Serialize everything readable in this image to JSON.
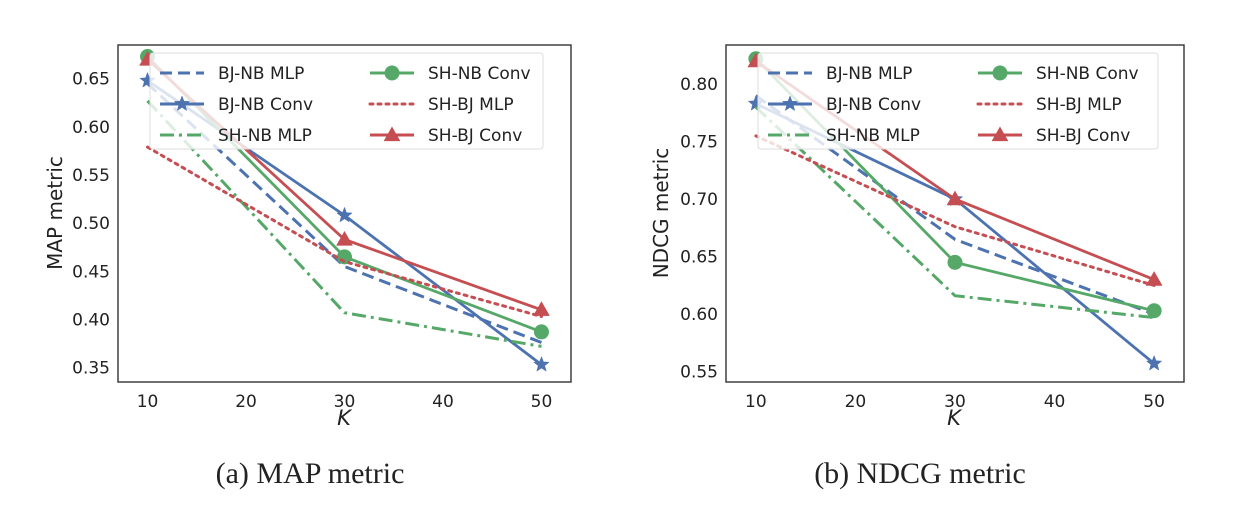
{
  "chart_data": [
    {
      "type": "line",
      "caption": "(a)  MAP metric",
      "xlabel": "K",
      "ylabel": "MAP metric",
      "x": [
        10,
        30,
        50
      ],
      "xlim": [
        7,
        53
      ],
      "ylim": [
        0.335,
        0.685
      ],
      "xticks": [
        10,
        20,
        30,
        40,
        50
      ],
      "yticks": [
        0.35,
        0.4,
        0.45,
        0.5,
        0.55,
        0.6,
        0.65
      ],
      "grid": false,
      "legend_position": "top-center",
      "series": [
        {
          "name": "BJ-NB MLP",
          "values": [
            0.645,
            0.455,
            0.376
          ],
          "color": "#4C72B0",
          "style": "dashed",
          "marker": "none"
        },
        {
          "name": "BJ-NB Conv",
          "values": [
            0.648,
            0.508,
            0.353
          ],
          "color": "#4C72B0",
          "style": "solid",
          "marker": "star"
        },
        {
          "name": "SH-NB MLP",
          "values": [
            0.627,
            0.407,
            0.372
          ],
          "color": "#55A868",
          "style": "dashdot",
          "marker": "none"
        },
        {
          "name": "SH-NB Conv",
          "values": [
            0.673,
            0.465,
            0.387
          ],
          "color": "#55A868",
          "style": "solid",
          "marker": "circle"
        },
        {
          "name": "SH-BJ MLP",
          "values": [
            0.579,
            0.46,
            0.403
          ],
          "color": "#C44E52",
          "style": "dotted",
          "marker": "none"
        },
        {
          "name": "SH-BJ Conv",
          "values": [
            0.67,
            0.483,
            0.41
          ],
          "color": "#C44E52",
          "style": "solid",
          "marker": "triangle"
        }
      ]
    },
    {
      "type": "line",
      "caption": "(b)  NDCG metric",
      "xlabel": "K",
      "ylabel": "NDCG metric",
      "x": [
        10,
        30,
        50
      ],
      "xlim": [
        7,
        53
      ],
      "ylim": [
        0.541,
        0.834
      ],
      "xticks": [
        10,
        20,
        30,
        40,
        50
      ],
      "yticks": [
        0.55,
        0.6,
        0.65,
        0.7,
        0.75,
        0.8
      ],
      "grid": false,
      "legend_position": "top-center",
      "series": [
        {
          "name": "BJ-NB MLP",
          "values": [
            0.79,
            0.665,
            0.6
          ],
          "color": "#4C72B0",
          "style": "dashed",
          "marker": "none"
        },
        {
          "name": "BJ-NB Conv",
          "values": [
            0.783,
            0.7,
            0.557
          ],
          "color": "#4C72B0",
          "style": "solid",
          "marker": "star"
        },
        {
          "name": "SH-NB MLP",
          "values": [
            0.78,
            0.616,
            0.597
          ],
          "color": "#55A868",
          "style": "dashdot",
          "marker": "none"
        },
        {
          "name": "SH-NB Conv",
          "values": [
            0.822,
            0.645,
            0.603
          ],
          "color": "#55A868",
          "style": "solid",
          "marker": "circle"
        },
        {
          "name": "SH-BJ MLP",
          "values": [
            0.755,
            0.676,
            0.625
          ],
          "color": "#C44E52",
          "style": "dotted",
          "marker": "none"
        },
        {
          "name": "SH-BJ Conv",
          "values": [
            0.82,
            0.7,
            0.63
          ],
          "color": "#C44E52",
          "style": "solid",
          "marker": "triangle"
        }
      ]
    }
  ]
}
